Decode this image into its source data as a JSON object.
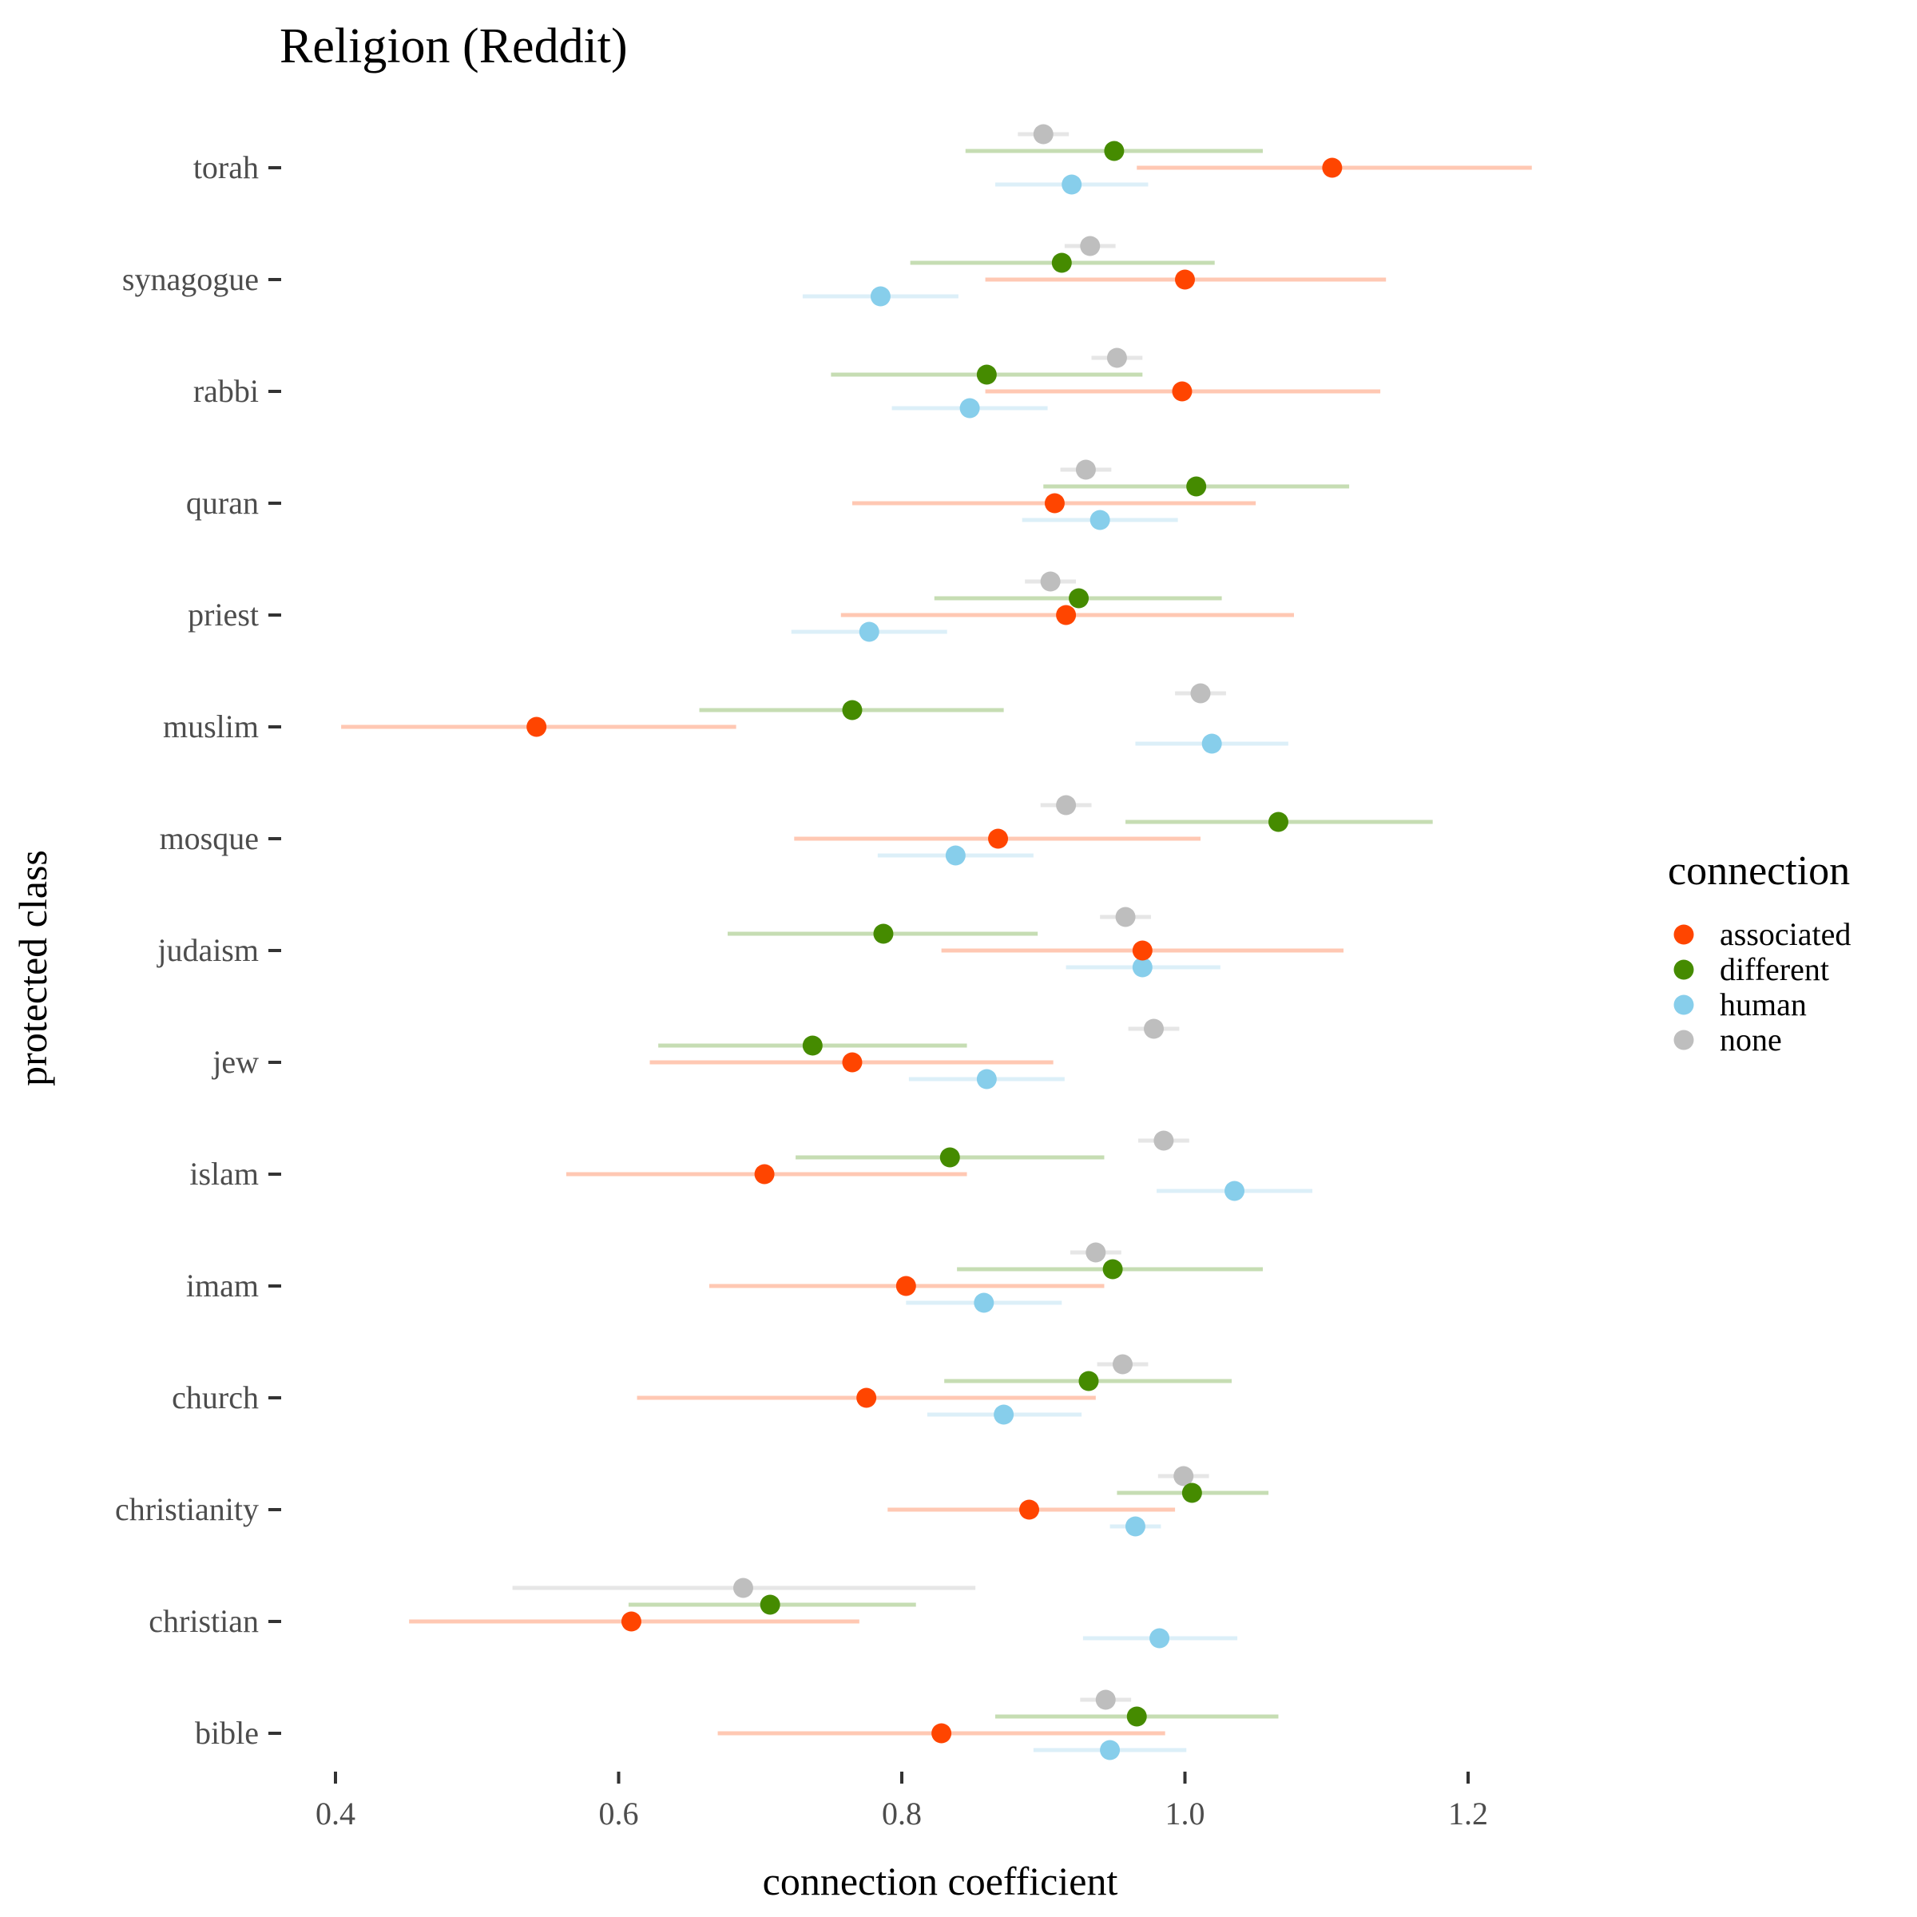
{
  "chart_data": {
    "type": "scatter",
    "title": "Religion (Reddit)",
    "xlabel": "connection coefficient",
    "ylabel": "protected class",
    "xlim": [
      0.4,
      1.2
    ],
    "x_ticks": [
      "0.4",
      "0.6",
      "0.8",
      "1.0",
      "1.2"
    ],
    "categories": [
      "torah",
      "synagogue",
      "rabbi",
      "quran",
      "priest",
      "muslim",
      "mosque",
      "judaism",
      "jew",
      "islam",
      "imam",
      "church",
      "christianity",
      "christian",
      "bible"
    ],
    "grid": false,
    "legend": {
      "title": "connection",
      "position": "right",
      "items": [
        "associated",
        "different",
        "human",
        "none"
      ]
    },
    "series": [
      {
        "name": "associated",
        "color": "#FF4500",
        "ci_color": "#FFC8B3",
        "values": [
          1.104,
          1.0,
          0.998,
          0.908,
          0.916,
          0.542,
          0.868,
          0.97,
          0.765,
          0.703,
          0.803,
          0.775,
          0.89,
          0.609,
          0.828
        ],
        "ci_low": [
          0.966,
          0.859,
          0.859,
          0.765,
          0.757,
          0.404,
          0.724,
          0.828,
          0.622,
          0.563,
          0.664,
          0.613,
          0.79,
          0.452,
          0.67
        ],
        "ci_high": [
          1.245,
          1.142,
          1.138,
          1.05,
          1.077,
          0.683,
          1.011,
          1.112,
          0.907,
          0.846,
          0.943,
          0.937,
          0.993,
          0.77,
          0.986
        ]
      },
      {
        "name": "different",
        "color": "#458B00",
        "ci_color": "#C6DDB3",
        "values": [
          0.95,
          0.913,
          0.86,
          1.008,
          0.925,
          0.765,
          1.066,
          0.787,
          0.737,
          0.834,
          0.949,
          0.932,
          1.005,
          0.707,
          0.966
        ],
        "ci_low": [
          0.845,
          0.806,
          0.75,
          0.9,
          0.823,
          0.657,
          0.958,
          0.677,
          0.628,
          0.725,
          0.839,
          0.83,
          0.952,
          0.607,
          0.866
        ],
        "ci_high": [
          1.055,
          1.021,
          0.97,
          1.116,
          1.026,
          0.872,
          1.175,
          0.896,
          0.846,
          0.943,
          1.055,
          1.033,
          1.059,
          0.81,
          1.066
        ]
      },
      {
        "name": "human",
        "color": "#87CEEB",
        "ci_color": "#DCEFF8",
        "values": [
          0.92,
          0.785,
          0.848,
          0.94,
          0.777,
          1.019,
          0.838,
          0.97,
          0.86,
          1.035,
          0.858,
          0.872,
          0.965,
          0.982,
          0.947
        ],
        "ci_low": [
          0.866,
          0.73,
          0.793,
          0.885,
          0.722,
          0.965,
          0.783,
          0.916,
          0.805,
          0.98,
          0.803,
          0.818,
          0.947,
          0.928,
          0.893
        ],
        "ci_high": [
          0.974,
          0.84,
          0.903,
          0.995,
          0.832,
          1.073,
          0.893,
          1.025,
          0.915,
          1.09,
          0.913,
          0.927,
          0.983,
          1.037,
          1.001
        ]
      },
      {
        "name": "none",
        "color": "#BEBEBE",
        "ci_color": "#E6E6E6",
        "values": [
          0.9,
          0.933,
          0.952,
          0.93,
          0.905,
          1.011,
          0.916,
          0.958,
          0.978,
          0.985,
          0.937,
          0.956,
          0.999,
          0.688,
          0.944
        ],
        "ci_low": [
          0.882,
          0.915,
          0.934,
          0.912,
          0.887,
          0.993,
          0.898,
          0.94,
          0.96,
          0.967,
          0.919,
          0.938,
          0.981,
          0.525,
          0.926
        ],
        "ci_high": [
          0.918,
          0.951,
          0.97,
          0.948,
          0.923,
          1.029,
          0.934,
          0.976,
          0.996,
          1.003,
          0.955,
          0.974,
          1.017,
          0.852,
          0.962
        ]
      }
    ]
  }
}
